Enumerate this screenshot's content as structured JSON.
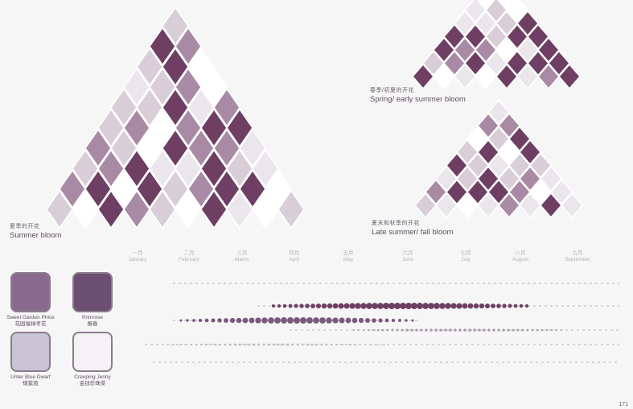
{
  "captions": {
    "summer": {
      "cn": "夏季的开花",
      "en": "Summer bloom"
    },
    "spring": {
      "cn": "春季/初夏的开花",
      "en": "Spring/ early summer bloom"
    },
    "late": {
      "cn": "夏末和秋季的开花",
      "en": "Late summer/ fall bloom"
    }
  },
  "months": [
    {
      "cn": "一月",
      "en": "January"
    },
    {
      "cn": "二月",
      "en": "February"
    },
    {
      "cn": "三月",
      "en": "March"
    },
    {
      "cn": "四月",
      "en": "April"
    },
    {
      "cn": "五月",
      "en": "May"
    },
    {
      "cn": "六月",
      "en": "June"
    },
    {
      "cn": "七月",
      "en": "July"
    },
    {
      "cn": "八月",
      "en": "August"
    },
    {
      "cn": "九月",
      "en": "September"
    }
  ],
  "legend": [
    {
      "name": "Sweet Garden Phlox",
      "cn": "花园福禄考花",
      "color": "#8a6a8e"
    },
    {
      "name": "Primrose",
      "cn": "报春",
      "color": "#6c4f72"
    },
    {
      "name": "Unter Blue Dwarf",
      "cn": "矮紫菀",
      "color": "#c9c3d6"
    },
    {
      "name": "Creeping Jenny",
      "cn": "金钱珍珠菜",
      "color": "#f4f2f4"
    }
  ],
  "colors": {
    "plum": "#6e3f63",
    "mauve": "#a98aa4",
    "lilac": "#d9cdd8",
    "light": "#ebe6ec"
  },
  "page_number": "171"
}
